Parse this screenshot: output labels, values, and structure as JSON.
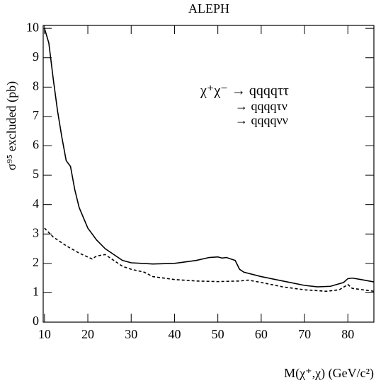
{
  "chart_data": {
    "type": "line",
    "title": "ALEPH",
    "xlabel": "M(χ⁺,χ)  (GeV/c²)",
    "ylabel": "σ⁹⁵ excluded (pb)",
    "annotations": [
      "χ⁺χ⁻ → qqqqττ",
      "→ qqqqτν",
      "→ qqqqνν"
    ],
    "xlim": [
      9.7,
      86
    ],
    "ylim": [
      0,
      10.1
    ],
    "xticks": [
      10,
      20,
      30,
      40,
      50,
      60,
      70,
      80
    ],
    "yticks": [
      0,
      1,
      2,
      3,
      4,
      5,
      6,
      7,
      8,
      9,
      10
    ],
    "series": [
      {
        "style": "solid",
        "color": "#000000",
        "x": [
          10,
          11,
          12,
          13,
          14,
          15,
          16,
          17,
          18,
          20,
          22,
          24,
          26,
          28,
          30,
          35,
          40,
          45,
          48,
          50,
          51,
          52,
          53,
          54,
          55,
          56,
          60,
          65,
          70,
          73,
          76,
          79,
          80,
          81,
          83,
          86
        ],
        "values": [
          10.0,
          9.5,
          8.3,
          7.2,
          6.3,
          5.5,
          5.3,
          4.5,
          3.9,
          3.2,
          2.8,
          2.5,
          2.3,
          2.1,
          2.02,
          1.98,
          2.0,
          2.1,
          2.2,
          2.22,
          2.18,
          2.2,
          2.15,
          2.1,
          1.8,
          1.7,
          1.55,
          1.4,
          1.25,
          1.2,
          1.22,
          1.35,
          1.48,
          1.5,
          1.45,
          1.37
        ]
      },
      {
        "style": "dashed",
        "color": "#000000",
        "x": [
          10,
          12,
          15,
          18,
          21,
          22,
          24,
          26,
          28,
          30,
          33,
          35,
          40,
          45,
          50,
          55,
          57,
          60,
          65,
          70,
          75,
          78,
          80,
          81,
          86
        ],
        "values": [
          3.2,
          2.9,
          2.6,
          2.35,
          2.15,
          2.25,
          2.3,
          2.1,
          1.9,
          1.8,
          1.7,
          1.55,
          1.45,
          1.4,
          1.38,
          1.4,
          1.43,
          1.35,
          1.2,
          1.1,
          1.05,
          1.1,
          1.28,
          1.15,
          1.05
        ]
      }
    ]
  }
}
